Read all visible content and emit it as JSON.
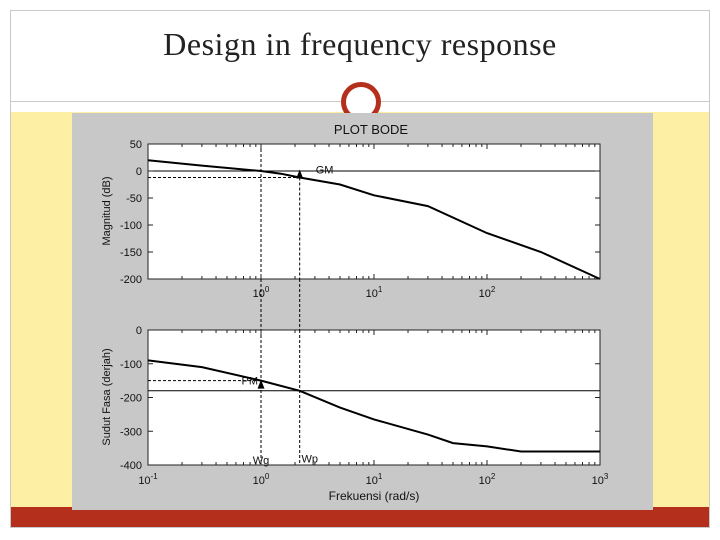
{
  "slide": {
    "title": "Design in frequency response",
    "colors": {
      "accent": "#b5301c",
      "band": "#fdf0a4",
      "figure_bg": "#c8c8c8"
    }
  },
  "chart_data": [
    {
      "type": "line",
      "title": "PLOT BODE",
      "xlabel": "",
      "ylabel": "Magnitud (dB)",
      "xscale": "log",
      "xlim": [
        0.1,
        1000
      ],
      "ylim": [
        -200,
        50
      ],
      "yticks": [
        50,
        0,
        -50,
        -100,
        -150,
        -200
      ],
      "xtick_labels": [
        "10^0",
        "10^1",
        "10^2"
      ],
      "grid": false,
      "series": [
        {
          "x": [
            0.1,
            0.3,
            1,
            1.5,
            2.2,
            5,
            10,
            30,
            100,
            300,
            1000
          ],
          "values": [
            20,
            10,
            0,
            -5,
            -12,
            -25,
            -45,
            -65,
            -115,
            -150,
            -200
          ]
        }
      ],
      "reference_lines": {
        "zero_db": 0,
        "gm_level": -12
      },
      "annotations": [
        {
          "text": "GM",
          "x": 2.2,
          "y": -12
        }
      ],
      "markers": {
        "wg": 1.0,
        "wp": 2.2
      }
    },
    {
      "type": "line",
      "title": "",
      "xlabel": "Frekuensi (rad/s)",
      "ylabel": "Sudut Fasa (derjah)",
      "xscale": "log",
      "xlim": [
        0.1,
        1000
      ],
      "ylim": [
        -400,
        0
      ],
      "yticks": [
        0,
        -100,
        -200,
        -300,
        -400
      ],
      "xtick_labels": [
        "10^-1",
        "10^0",
        "10^1",
        "10^2",
        "10^3"
      ],
      "grid": false,
      "series": [
        {
          "x": [
            0.1,
            0.3,
            1,
            2.2,
            5,
            10,
            30,
            50,
            100,
            200,
            1000
          ],
          "values": [
            -90,
            -110,
            -150,
            -180,
            -230,
            -265,
            -310,
            -335,
            -345,
            -360,
            -360
          ]
        }
      ],
      "reference_lines": {
        "minus_180": -180,
        "pm_level": -150
      },
      "annotations": [
        {
          "text": "PM",
          "x": 1.0,
          "y": -150
        },
        {
          "text": "Wg",
          "x": 1.0,
          "y": -385
        },
        {
          "text": "Wp",
          "x": 2.2,
          "y": -380
        }
      ],
      "markers": {
        "wg": 1.0,
        "wp": 2.2
      }
    }
  ]
}
